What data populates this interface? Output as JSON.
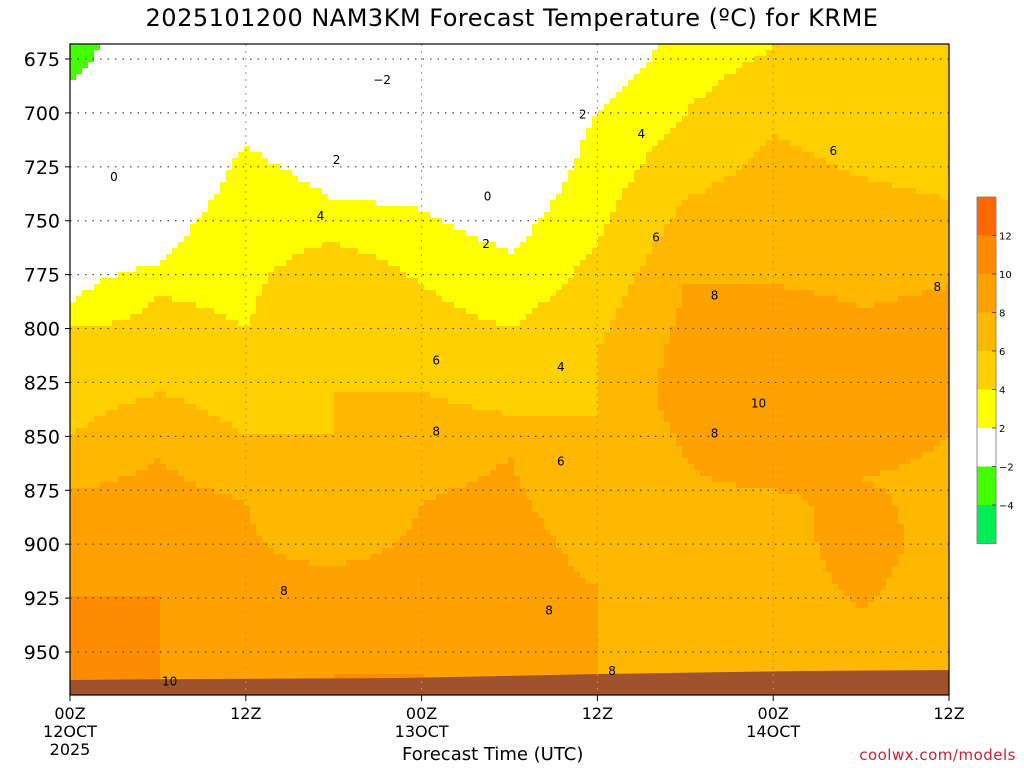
{
  "title": "2025101200 NAM3KM Forecast Temperature (ºC) for KRME",
  "credit": "coolwx.com/models",
  "chart_data": {
    "type": "heatmap",
    "title": "2025101200 NAM3KM Forecast Temperature (ºC) for KRME",
    "xlabel": "Forecast Time (UTC)",
    "ylabel": "",
    "x_ticks": [
      {
        "hour": 0,
        "label": "00Z",
        "sub1": "12OCT",
        "sub2": "2025"
      },
      {
        "hour": 12,
        "label": "12Z",
        "sub1": "",
        "sub2": ""
      },
      {
        "hour": 24,
        "label": "00Z",
        "sub1": "13OCT",
        "sub2": ""
      },
      {
        "hour": 36,
        "label": "12Z",
        "sub1": "",
        "sub2": ""
      },
      {
        "hour": 48,
        "label": "00Z",
        "sub1": "14OCT",
        "sub2": ""
      },
      {
        "hour": 60,
        "label": "12Z",
        "sub1": "",
        "sub2": ""
      }
    ],
    "xlim": [
      0,
      60
    ],
    "y_ticks": [
      675,
      700,
      725,
      750,
      775,
      800,
      825,
      850,
      875,
      900,
      925,
      950
    ],
    "ylim": [
      963,
      668
    ],
    "grid": true,
    "legend": "right",
    "colorbar": {
      "labels": [
        "12",
        "10",
        "8",
        "6",
        "4",
        "2",
        "−2",
        "−4"
      ],
      "colors": [
        "#ff6a00",
        "#ff8c00",
        "#ffa200",
        "#ffb800",
        "#ffd000",
        "#ffff00",
        "#ffffff",
        "#44ff00",
        "#00ee55"
      ]
    },
    "temperature_field": [
      {
        "hour": 0,
        "profile": [
          [
            670,
            -3
          ],
          [
            700,
            -1
          ],
          [
            725,
            0
          ],
          [
            760,
            0.5
          ],
          [
            790,
            2
          ],
          [
            800,
            4
          ],
          [
            850,
            6
          ],
          [
            875,
            8
          ],
          [
            925,
            10
          ],
          [
            950,
            12
          ],
          [
            960,
            11
          ]
        ]
      },
      {
        "hour": 6,
        "profile": [
          [
            670,
            0
          ],
          [
            700,
            0.5
          ],
          [
            740,
            1
          ],
          [
            770,
            2
          ],
          [
            785,
            4
          ],
          [
            830,
            6
          ],
          [
            860,
            8
          ],
          [
            920,
            10
          ],
          [
            960,
            10
          ]
        ]
      },
      {
        "hour": 12,
        "profile": [
          [
            670,
            0
          ],
          [
            690,
            1
          ],
          [
            715,
            2
          ],
          [
            800,
            4
          ],
          [
            850,
            6
          ],
          [
            880,
            8
          ],
          [
            935,
            8.5
          ],
          [
            960,
            9
          ]
        ]
      },
      {
        "hour": 18,
        "profile": [
          [
            670,
            0
          ],
          [
            700,
            1
          ],
          [
            740,
            2
          ],
          [
            760,
            4
          ],
          [
            780,
            6
          ],
          [
            880,
            6
          ],
          [
            910,
            8
          ],
          [
            950,
            10
          ],
          [
            960,
            10
          ]
        ]
      },
      {
        "hour": 24,
        "profile": [
          [
            670,
            -2
          ],
          [
            710,
            0
          ],
          [
            745,
            2
          ],
          [
            780,
            4
          ],
          [
            830,
            6
          ],
          [
            880,
            8
          ],
          [
            950,
            9
          ],
          [
            960,
            10
          ]
        ]
      },
      {
        "hour": 30,
        "profile": [
          [
            670,
            -1
          ],
          [
            730,
            0
          ],
          [
            765,
            2
          ],
          [
            800,
            4
          ],
          [
            840,
            6
          ],
          [
            860,
            8
          ],
          [
            900,
            9
          ],
          [
            960,
            9
          ]
        ]
      },
      {
        "hour": 36,
        "profile": [
          [
            670,
            0
          ],
          [
            700,
            2
          ],
          [
            760,
            4
          ],
          [
            810,
            6
          ],
          [
            870,
            6
          ],
          [
            920,
            8
          ],
          [
            960,
            8
          ]
        ]
      },
      {
        "hour": 42,
        "profile": [
          [
            670,
            3
          ],
          [
            700,
            4
          ],
          [
            740,
            6
          ],
          [
            780,
            8
          ],
          [
            830,
            9
          ],
          [
            860,
            8
          ],
          [
            960,
            7
          ]
        ]
      },
      {
        "hour": 48,
        "profile": [
          [
            670,
            4
          ],
          [
            710,
            6
          ],
          [
            780,
            8
          ],
          [
            820,
            10
          ],
          [
            850,
            9
          ],
          [
            900,
            7
          ],
          [
            960,
            7
          ]
        ]
      },
      {
        "hour": 54,
        "profile": [
          [
            670,
            4
          ],
          [
            730,
            6
          ],
          [
            790,
            8
          ],
          [
            840,
            9
          ],
          [
            870,
            8
          ],
          [
            900,
            9
          ],
          [
            960,
            7
          ]
        ]
      },
      {
        "hour": 60,
        "profile": [
          [
            670,
            4
          ],
          [
            740,
            6
          ],
          [
            780,
            8
          ],
          [
            820,
            9
          ],
          [
            850,
            8
          ],
          [
            900,
            7
          ],
          [
            960,
            7
          ]
        ]
      }
    ],
    "contour_labels": [
      {
        "hour": 3.0,
        "p": 730,
        "value": "0"
      },
      {
        "hour": 28.5,
        "p": 739,
        "value": "0"
      },
      {
        "hour": 21.3,
        "p": 685,
        "value": "−2"
      },
      {
        "hour": 18.2,
        "p": 722,
        "value": "2"
      },
      {
        "hour": 28.4,
        "p": 761,
        "value": "2"
      },
      {
        "hour": 35.0,
        "p": 701,
        "value": "2"
      },
      {
        "hour": 17.1,
        "p": 748,
        "value": "4"
      },
      {
        "hour": 39.0,
        "p": 710,
        "value": "4"
      },
      {
        "hour": 33.5,
        "p": 818,
        "value": "4"
      },
      {
        "hour": 25.0,
        "p": 815,
        "value": "6"
      },
      {
        "hour": 33.5,
        "p": 862,
        "value": "6"
      },
      {
        "hour": 40.0,
        "p": 758,
        "value": "6"
      },
      {
        "hour": 52.1,
        "p": 718,
        "value": "6"
      },
      {
        "hour": 25.0,
        "p": 848,
        "value": "8"
      },
      {
        "hour": 14.6,
        "p": 922,
        "value": "8"
      },
      {
        "hour": 32.7,
        "p": 931,
        "value": "8"
      },
      {
        "hour": 37.0,
        "p": 959,
        "value": "8"
      },
      {
        "hour": 44.0,
        "p": 785,
        "value": "8"
      },
      {
        "hour": 44.0,
        "p": 849,
        "value": "8"
      },
      {
        "hour": 59.2,
        "p": 781,
        "value": "8"
      },
      {
        "hour": 47.0,
        "p": 835,
        "value": "10"
      },
      {
        "hour": 6.8,
        "p": 964,
        "value": "10"
      }
    ]
  }
}
